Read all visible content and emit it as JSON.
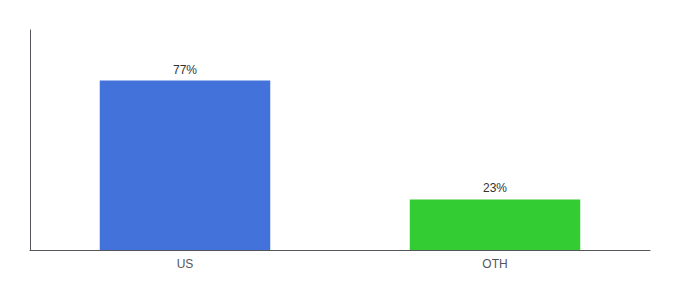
{
  "chart_data": {
    "type": "bar",
    "categories": [
      "US",
      "OTH"
    ],
    "values": [
      77,
      23
    ],
    "colors": [
      "#4472db",
      "#33cc33"
    ],
    "value_labels": [
      "77%",
      "23%"
    ],
    "data_labels": true,
    "ylim": [
      0,
      100
    ],
    "grid": false,
    "tick_labels": "x"
  }
}
